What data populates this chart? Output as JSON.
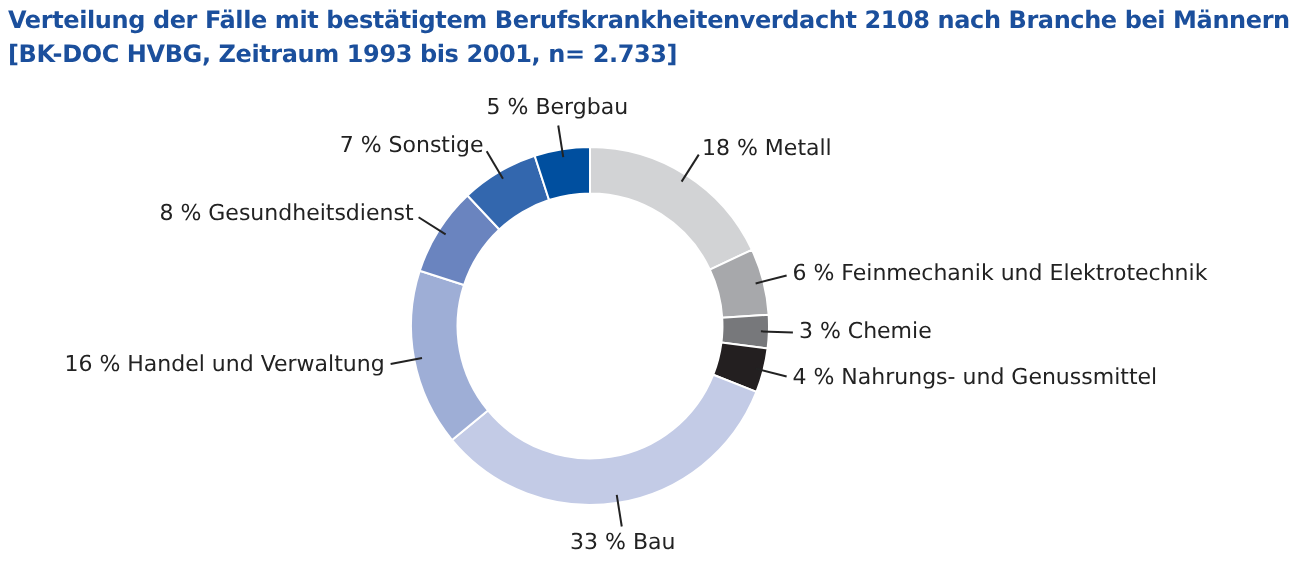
{
  "chart_data": {
    "type": "donut",
    "title": "Verteilung der Fälle mit bestätigtem Berufskrankheitenverdacht 2108 nach Branche bei Männern",
    "subtitle": "[BK-DOC HVBG, Zeitraum 1993 bis 2001, n= 2.733]",
    "categories": [
      "Metall",
      "Feinmechanik und Elektrotechnik",
      "Chemie",
      "Nahrungs- und Genussmittel",
      "Bau",
      "Handel und Verwaltung",
      "Gesundheitsdienst",
      "Sonstige",
      "Bergbau"
    ],
    "values": [
      18,
      6,
      3,
      4,
      33,
      16,
      8,
      7,
      5
    ],
    "value_labels": [
      "18 %",
      "6 %",
      "3 %",
      "4 %",
      "33 %",
      "16 %",
      "8 %",
      "7 %",
      "5 %"
    ],
    "colors": [
      "#d2d3d5",
      "#a7a8ab",
      "#77787b",
      "#231f20",
      "#c3cbe6",
      "#9eaed6",
      "#6a84bf",
      "#3367ae",
      "#004f9f"
    ]
  }
}
